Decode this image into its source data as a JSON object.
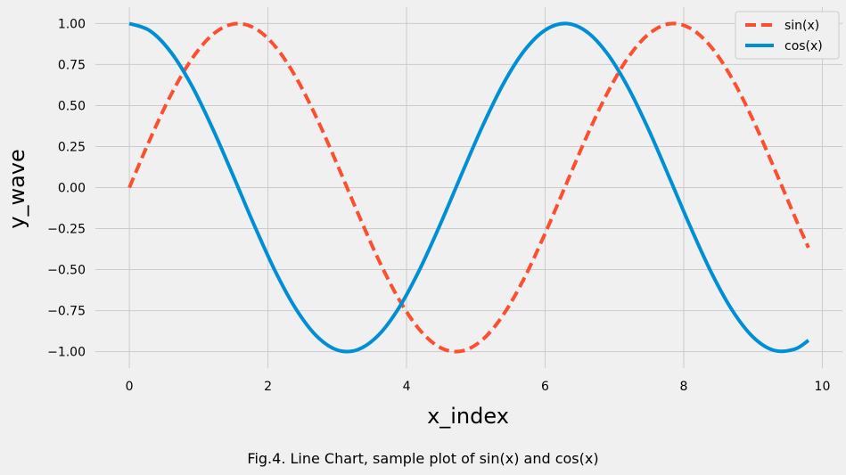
{
  "chart_data": {
    "type": "line",
    "xlabel": "x_index",
    "ylabel": "y_wave",
    "xlim": [
      -0.49,
      10.29
    ],
    "ylim": [
      -1.1,
      1.1
    ],
    "xticks": [
      0,
      2,
      4,
      6,
      8,
      10
    ],
    "xtick_labels": [
      "0",
      "2",
      "4",
      "6",
      "8",
      "10"
    ],
    "yticks": [
      -1.0,
      -0.75,
      -0.5,
      -0.25,
      0.0,
      0.25,
      0.5,
      0.75,
      1.0
    ],
    "ytick_labels": [
      "−1.00",
      "−0.75",
      "−0.50",
      "−0.25",
      "0.00",
      "0.25",
      "0.50",
      "0.75",
      "1.00"
    ],
    "grid": true,
    "legend_position": "top-right",
    "x": [
      0,
      0.3,
      0.6,
      0.9,
      1.2,
      1.5,
      1.8,
      2.1,
      2.4,
      2.7,
      3.0,
      3.3,
      3.6,
      3.9,
      4.2,
      4.5,
      4.8,
      5.1,
      5.4,
      5.7,
      6.0,
      6.3,
      6.6,
      6.9,
      7.2,
      7.5,
      7.8,
      8.1,
      8.4,
      8.7,
      9.0,
      9.3,
      9.6,
      9.8
    ],
    "series": [
      {
        "name": "sin(x)",
        "color": "#fc4f30",
        "line_style": "dashed",
        "values": [
          0.0,
          0.296,
          0.565,
          0.783,
          0.932,
          0.997,
          0.974,
          0.863,
          0.675,
          0.427,
          0.141,
          -0.158,
          -0.443,
          -0.688,
          -0.872,
          -0.978,
          -0.996,
          -0.926,
          -0.773,
          -0.551,
          -0.279,
          0.017,
          0.312,
          0.578,
          0.794,
          0.938,
          0.999,
          0.97,
          0.855,
          0.663,
          0.412,
          0.124,
          -0.175,
          -0.366
        ]
      },
      {
        "name": "cos(x)",
        "color": "#008fd5",
        "line_style": "solid",
        "values": [
          1.0,
          0.955,
          0.825,
          0.622,
          0.362,
          0.071,
          -0.227,
          -0.505,
          -0.737,
          -0.904,
          -0.99,
          -0.987,
          -0.897,
          -0.726,
          -0.49,
          -0.211,
          0.087,
          0.378,
          0.635,
          0.835,
          0.96,
          1.0,
          0.95,
          0.815,
          0.608,
          0.347,
          0.054,
          -0.243,
          -0.519,
          -0.748,
          -0.911,
          -0.992,
          -0.985,
          -0.931
        ]
      }
    ]
  },
  "caption": "Fig.4. Line Chart, sample plot of sin(x) and cos(x)"
}
